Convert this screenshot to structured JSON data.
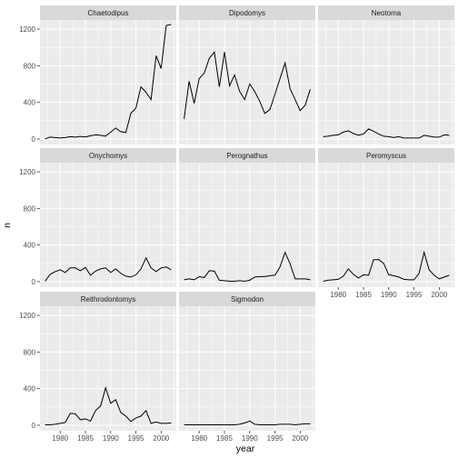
{
  "chart_data": {
    "type": "line",
    "layout": "facet_wrap",
    "xlabel": "year",
    "ylabel": "n",
    "xlim": [
      1976,
      2003
    ],
    "ylim": [
      -60,
      1300
    ],
    "xticks": [
      1980,
      1985,
      1990,
      1995,
      2000
    ],
    "yticks": [
      0,
      400,
      800,
      1200
    ],
    "colors": {
      "panel_bg": "#ebebeb",
      "grid_major": "#ffffff",
      "strip_bg": "#d9d9d9",
      "line": "#000000",
      "tick": "#333333"
    },
    "panels": [
      {
        "name": "Chaetodipus",
        "x": [
          1977,
          1978,
          1979,
          1980,
          1981,
          1982,
          1983,
          1984,
          1985,
          1986,
          1987,
          1988,
          1989,
          1990,
          1991,
          1992,
          1993,
          1994,
          1995,
          1996,
          1997,
          1998,
          1999,
          2000,
          2001,
          2002
        ],
        "y": [
          2,
          20,
          15,
          10,
          15,
          25,
          20,
          28,
          22,
          35,
          45,
          40,
          30,
          75,
          120,
          80,
          70,
          280,
          340,
          570,
          510,
          430,
          910,
          770,
          1240,
          1250
        ]
      },
      {
        "name": "Dipodomys",
        "x": [
          1977,
          1978,
          1979,
          1980,
          1981,
          1982,
          1983,
          1984,
          1985,
          1986,
          1987,
          1988,
          1989,
          1990,
          1991,
          1992,
          1993,
          1994,
          1995,
          1996,
          1997,
          1998,
          1999,
          2000,
          2001,
          2002
        ],
        "y": [
          220,
          630,
          390,
          660,
          720,
          880,
          950,
          570,
          950,
          580,
          700,
          520,
          430,
          600,
          520,
          410,
          280,
          320,
          490,
          660,
          830,
          550,
          430,
          310,
          370,
          545
        ]
      },
      {
        "name": "Neotoma",
        "x": [
          1977,
          1978,
          1979,
          1980,
          1981,
          1982,
          1983,
          1984,
          1985,
          1986,
          1987,
          1988,
          1989,
          1990,
          1991,
          1992,
          1993,
          1994,
          1995,
          1996,
          1997,
          1998,
          1999,
          2000,
          2001,
          2002
        ],
        "y": [
          25,
          30,
          40,
          45,
          75,
          90,
          60,
          40,
          55,
          110,
          85,
          55,
          30,
          25,
          15,
          25,
          10,
          10,
          10,
          10,
          40,
          30,
          20,
          20,
          45,
          40
        ]
      },
      {
        "name": "Onychomys",
        "x": [
          1977,
          1978,
          1979,
          1980,
          1981,
          1982,
          1983,
          1984,
          1985,
          1986,
          1987,
          1988,
          1989,
          1990,
          1991,
          1992,
          1993,
          1994,
          1995,
          1996,
          1997,
          1998,
          1999,
          2000,
          2001,
          2002
        ],
        "y": [
          5,
          80,
          110,
          130,
          100,
          150,
          150,
          120,
          155,
          70,
          115,
          140,
          150,
          100,
          140,
          90,
          60,
          50,
          75,
          140,
          260,
          150,
          110,
          150,
          160,
          130
        ]
      },
      {
        "name": "Perognathus",
        "x": [
          1977,
          1978,
          1979,
          1980,
          1981,
          1982,
          1983,
          1984,
          1985,
          1986,
          1987,
          1988,
          1989,
          1990,
          1991,
          1992,
          1993,
          1994,
          1995,
          1996,
          1997,
          1998,
          1999,
          2000,
          2001,
          2002
        ],
        "y": [
          20,
          30,
          20,
          55,
          45,
          120,
          115,
          15,
          10,
          5,
          5,
          10,
          5,
          15,
          50,
          55,
          55,
          65,
          70,
          160,
          320,
          195,
          30,
          30,
          30,
          20
        ]
      },
      {
        "name": "Peromyscus",
        "x": [
          1977,
          1978,
          1979,
          1980,
          1981,
          1982,
          1983,
          1984,
          1985,
          1986,
          1987,
          1988,
          1989,
          1990,
          1991,
          1992,
          1993,
          1994,
          1995,
          1996,
          1997,
          1998,
          1999,
          2000,
          2001,
          2002
        ],
        "y": [
          5,
          15,
          20,
          25,
          60,
          140,
          80,
          40,
          75,
          70,
          240,
          240,
          200,
          75,
          65,
          50,
          25,
          20,
          20,
          90,
          320,
          130,
          70,
          30,
          50,
          70
        ]
      },
      {
        "name": "Reithrodontomys",
        "x": [
          1977,
          1978,
          1979,
          1980,
          1981,
          1982,
          1983,
          1984,
          1985,
          1986,
          1987,
          1988,
          1989,
          1990,
          1991,
          1992,
          1993,
          1994,
          1995,
          1996,
          1997,
          1998,
          1999,
          2000,
          2001,
          2002
        ],
        "y": [
          5,
          5,
          10,
          20,
          30,
          130,
          125,
          60,
          70,
          45,
          160,
          210,
          410,
          240,
          280,
          140,
          100,
          40,
          80,
          100,
          160,
          20,
          35,
          20,
          20,
          25
        ]
      },
      {
        "name": "Sigmodon",
        "x": [
          1977,
          1978,
          1979,
          1980,
          1981,
          1982,
          1983,
          1984,
          1985,
          1986,
          1987,
          1988,
          1989,
          1990,
          1991,
          1992,
          1993,
          1994,
          1995,
          1996,
          1997,
          1998,
          1999,
          2000,
          2001,
          2002
        ],
        "y": [
          5,
          5,
          5,
          5,
          5,
          5,
          5,
          5,
          5,
          5,
          5,
          10,
          25,
          45,
          10,
          5,
          5,
          5,
          5,
          10,
          10,
          10,
          5,
          10,
          15,
          15
        ]
      }
    ]
  }
}
